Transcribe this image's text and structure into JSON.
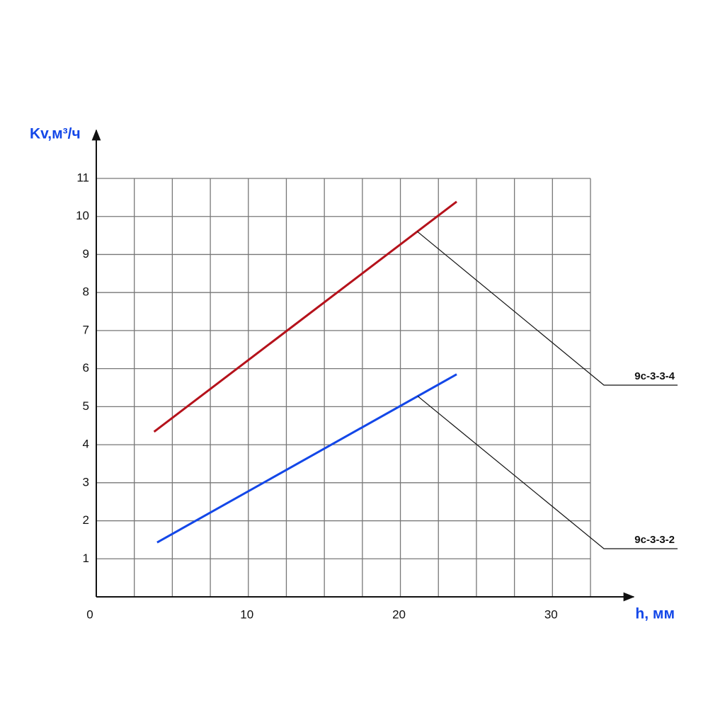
{
  "chart_data": {
    "type": "line",
    "xlabel": "h, мм",
    "ylabel": "Kv,м³/ч",
    "xlim": [
      0,
      32.5
    ],
    "ylim": [
      0,
      11
    ],
    "xticks": [
      0,
      10,
      20,
      30
    ],
    "xminorticks": [
      2.5,
      5,
      7.5,
      12.5,
      15,
      17.5,
      22.5,
      25,
      27.5,
      32.5
    ],
    "yticks": [
      1,
      2,
      3,
      4,
      5,
      6,
      7,
      8,
      9,
      10,
      11
    ],
    "grid": true,
    "series": [
      {
        "name": "9с-3-3-4",
        "color": "#b5121b",
        "x": [
          3.8,
          23.7
        ],
        "values": [
          4.34,
          10.39
        ]
      },
      {
        "name": "9с-3-3-2",
        "color": "#1347e8",
        "x": [
          4.0,
          23.7
        ],
        "values": [
          1.43,
          5.85
        ]
      }
    ]
  }
}
